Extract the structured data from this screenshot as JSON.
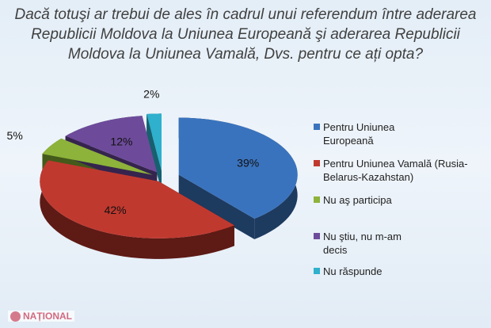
{
  "title": "Dacă totuşi ar trebui de ales în cadrul unui referendum între aderarea Republicii Moldova la Uniunea Europeană şi aderarea Republicii Moldova la Uniunea Vamală, Dvs. pentru ce ați opta?",
  "watermark": "NAȚIONAL",
  "chart_data": {
    "type": "pie",
    "title": "Dacă totuşi ar trebui de ales în cadrul unui referendum între aderarea Republicii Moldova la Uniunea Europeană şi aderarea Republicii Moldova la Uniunea Vamală, Dvs. pentru ce ați opta?",
    "legend_position": "right",
    "slices": [
      {
        "label": "Pentru Uniunea Europeană",
        "value": 39,
        "display": "39%",
        "color": "#3a73bd",
        "dark": "#1d3a5f"
      },
      {
        "label": "Pentru Uniunea Vamală (Rusia-Belarus-Kazahstan)",
        "value": 42,
        "display": "42%",
        "color": "#c0392f",
        "dark": "#5e1a15"
      },
      {
        "label": "Nu aş participa",
        "value": 5,
        "display": "5%",
        "color": "#8db33a",
        "dark": "#435a1b"
      },
      {
        "label": "Nu ştiu, nu m-am decis",
        "value": 12,
        "display": "12%",
        "color": "#6d4b9a",
        "dark": "#35244d"
      },
      {
        "label": "Nu răspunde",
        "value": 2,
        "display": "2%",
        "color": "#2fb0cc",
        "dark": "#176070"
      }
    ]
  }
}
